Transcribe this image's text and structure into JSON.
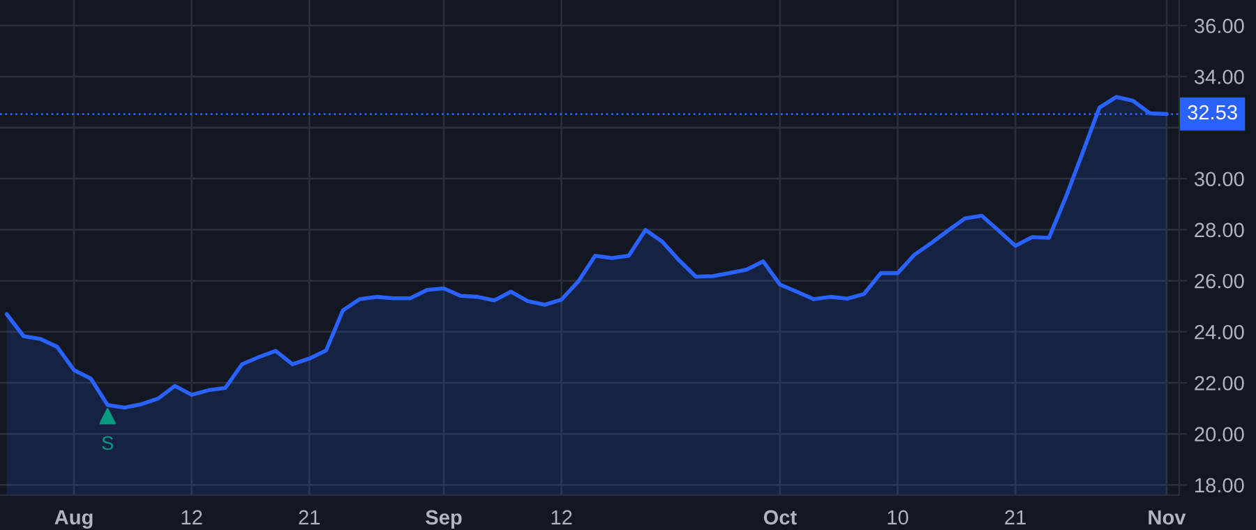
{
  "chart_data": {
    "type": "area",
    "categories": [
      null,
      null,
      null,
      null,
      "Aug",
      null,
      null,
      null,
      null,
      null,
      null,
      "12",
      null,
      null,
      null,
      null,
      null,
      null,
      "21",
      null,
      null,
      null,
      null,
      null,
      null,
      null,
      "Sep",
      null,
      null,
      null,
      null,
      null,
      null,
      "12",
      null,
      null,
      null,
      null,
      null,
      null,
      null,
      null,
      null,
      null,
      null,
      null,
      "Oct",
      null,
      null,
      null,
      null,
      null,
      null,
      "10",
      null,
      null,
      null,
      null,
      null,
      null,
      "21",
      null,
      null,
      null,
      null,
      null,
      null,
      null,
      null,
      "Nov"
    ],
    "series": [
      {
        "color": "#2962ff",
        "values": [
          24.69,
          23.83,
          23.72,
          23.41,
          22.5,
          22.17,
          21.13,
          21.03,
          21.16,
          21.38,
          21.88,
          21.53,
          21.71,
          21.8,
          22.73,
          23.01,
          23.25,
          22.73,
          22.95,
          23.27,
          24.84,
          25.28,
          25.37,
          25.31,
          25.31,
          25.64,
          25.7,
          25.41,
          25.37,
          25.23,
          25.57,
          25.2,
          25.06,
          25.26,
          25.97,
          26.98,
          26.89,
          26.98,
          27.99,
          27.53,
          26.8,
          26.16,
          26.18,
          26.3,
          26.43,
          26.76,
          25.85,
          25.57,
          25.28,
          25.37,
          25.3,
          25.48,
          26.3,
          26.3,
          27.02,
          27.48,
          27.97,
          28.44,
          28.55,
          27.97,
          27.37,
          27.71,
          27.68,
          29.27,
          31.01,
          32.78,
          33.2,
          33.05,
          32.56,
          32.53
        ]
      },
      {
        "type": "scatter",
        "name": "S",
        "color": "#089981",
        "marker": "triangle",
        "values": [
          null,
          null,
          null,
          null,
          null,
          null,
          20.69,
          null,
          null,
          null,
          null,
          null,
          null,
          null,
          null,
          null,
          null,
          null,
          null,
          null,
          null,
          null,
          null,
          null,
          null,
          null,
          null,
          null,
          null,
          null,
          null,
          null,
          null,
          null,
          null,
          null,
          null,
          null,
          null,
          null,
          null,
          null,
          null,
          null,
          null,
          null,
          null,
          null,
          null,
          null,
          null,
          null,
          null,
          null,
          null,
          null,
          null,
          null,
          null,
          null,
          null,
          null,
          null,
          null,
          null,
          null,
          null,
          null,
          null,
          null
        ]
      }
    ],
    "ylim": [
      17.6,
      37.0
    ],
    "yticks": [
      {
        "value": 18,
        "label": "18.00"
      },
      {
        "value": 20,
        "label": "20.00"
      },
      {
        "value": 22,
        "label": "22.00"
      },
      {
        "value": 24,
        "label": "24.00"
      },
      {
        "value": 26,
        "label": "26.00"
      },
      {
        "value": 28,
        "label": "28.00"
      },
      {
        "value": 30,
        "label": "30.00"
      },
      {
        "value": 32,
        "label": null
      },
      {
        "value": 34,
        "label": "34.00"
      },
      {
        "value": 36,
        "label": "36.00"
      }
    ],
    "ref_lines": [
      {
        "axis": "y",
        "value": 32.53,
        "label": "32.53",
        "color": "#2962ff",
        "line_style": "dotted"
      }
    ],
    "grid": true
  }
}
